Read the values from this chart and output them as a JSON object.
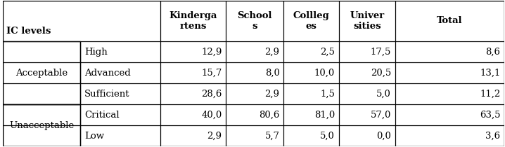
{
  "col_headers": [
    "Kinderga\nrtens",
    "School\ns",
    "Collleg\nes",
    "Univer\nsities",
    "Total"
  ],
  "row_groups": [
    {
      "group_label": "Acceptable",
      "rows": [
        {
          "level": "High",
          "values": [
            "12,9",
            "2,9",
            "2,5",
            "17,5",
            "8,6"
          ]
        },
        {
          "level": "Advanced",
          "values": [
            "15,7",
            "8,0",
            "10,0",
            "20,5",
            "13,1"
          ]
        },
        {
          "level": "Sufficient",
          "values": [
            "28,6",
            "2,9",
            "1,5",
            "5,0",
            "11,2"
          ]
        }
      ]
    },
    {
      "group_label": "Unacceptable",
      "rows": [
        {
          "level": "Critical",
          "values": [
            "40,0",
            "80,6",
            "81,0",
            "57,0",
            "63,5"
          ]
        },
        {
          "level": "Low",
          "values": [
            "2,9",
            "5,7",
            "5,0",
            "0,0",
            "3,6"
          ]
        }
      ]
    }
  ],
  "top_left_label": "IC levels",
  "background_color": "#ffffff",
  "line_color": "#000000",
  "font_size": 9.5,
  "figsize": [
    7.18,
    2.1
  ],
  "dpi": 100
}
